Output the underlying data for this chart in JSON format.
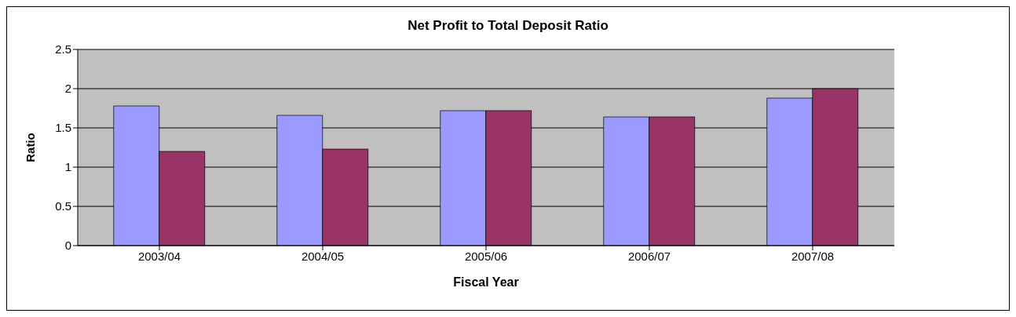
{
  "chart_data": {
    "type": "bar",
    "title": "Net Profit to Total Deposit Ratio",
    "xlabel": "Fiscal Year",
    "ylabel": "Ratio",
    "categories": [
      "2003/04",
      "2004/05",
      "2005/06",
      "2006/07",
      "2007/08"
    ],
    "series": [
      {
        "color": "#9999ff",
        "values": [
          1.78,
          1.66,
          1.72,
          1.64,
          1.88
        ]
      },
      {
        "color": "#993366",
        "values": [
          1.2,
          1.23,
          1.72,
          1.64,
          2.0
        ]
      }
    ],
    "ylim": [
      0,
      2.5
    ],
    "yticks": [
      0,
      0.5,
      1,
      1.5,
      2,
      2.5
    ],
    "grid": "y",
    "legend": false
  }
}
